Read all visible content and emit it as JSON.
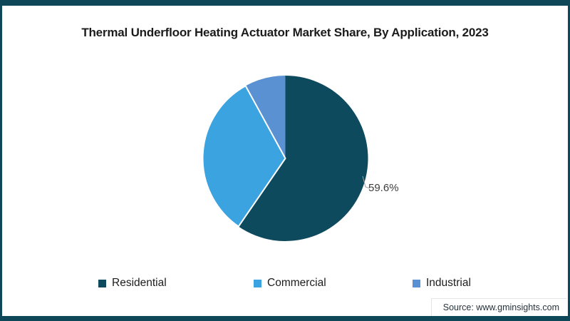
{
  "frame": {
    "border_color": "#0d4758"
  },
  "source": "Source: www.gminsights.com",
  "chart_data": {
    "type": "pie",
    "title": "Thermal Underfloor Heating Actuator Market Share, By Application, 2023",
    "start_angle": "top",
    "direction": "clockwise",
    "legend_position": "bottom",
    "slices": [
      {
        "label": "Residential",
        "value": 59.6,
        "color": "#0e4a5e",
        "data_label": "59.6%"
      },
      {
        "label": "Commercial",
        "value": 32.4,
        "color": "#3ba3e0",
        "data_label": null
      },
      {
        "label": "Industrial",
        "value": 8.0,
        "color": "#5a91d2",
        "data_label": null
      }
    ],
    "displayed_data_labels": [
      "59.6%"
    ]
  }
}
